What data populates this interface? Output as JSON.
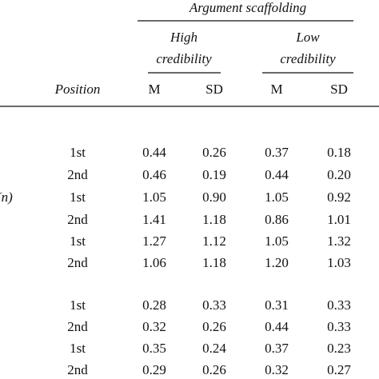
{
  "table": {
    "group_header": "Argument scaffolding",
    "subgroups": [
      [
        "High",
        "credibility"
      ],
      [
        "Low",
        "credibility"
      ]
    ],
    "position_header": "Position",
    "column_headers": [
      "M",
      "SD",
      "M",
      "SD"
    ],
    "side_label": "(n)",
    "rows": [
      [
        "1st",
        "0.44",
        "0.26",
        "0.37",
        "0.18"
      ],
      [
        "2nd",
        "0.46",
        "0.19",
        "0.44",
        "0.20"
      ],
      [
        "1st",
        "1.05",
        "0.90",
        "1.05",
        "0.92"
      ],
      [
        "2nd",
        "1.41",
        "1.18",
        "0.86",
        "1.01"
      ],
      [
        "1st",
        "1.27",
        "1.12",
        "1.05",
        "1.32"
      ],
      [
        "2nd",
        "1.06",
        "1.18",
        "1.20",
        "1.03"
      ],
      [
        "1st",
        "0.28",
        "0.33",
        "0.31",
        "0.33"
      ],
      [
        "2nd",
        "0.32",
        "0.26",
        "0.44",
        "0.33"
      ],
      [
        "1st",
        "0.35",
        "0.24",
        "0.37",
        "0.23"
      ],
      [
        "2nd",
        "0.29",
        "0.26",
        "0.32",
        "0.27"
      ]
    ]
  }
}
